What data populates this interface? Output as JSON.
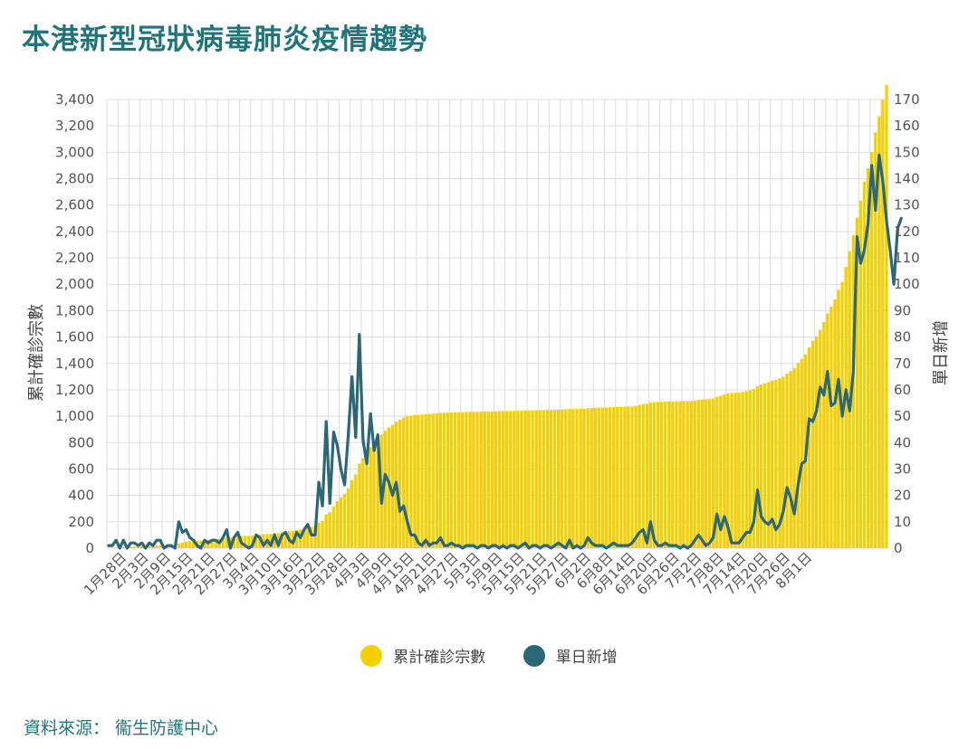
{
  "title": "本港新型冠狀病毒肺炎疫情趨勢",
  "source": "資料來源： 衞生防護中心",
  "colors": {
    "bar": "#f5d000",
    "line": "#2b6777",
    "title": "#20757a",
    "grid": "#dddddd"
  },
  "chart_data": {
    "type": "bar+line",
    "title": "本港新型冠狀病毒肺炎疫情趨勢",
    "ylabel": "累計確診宗數",
    "y2label": "單日新增",
    "ylim": [
      0,
      3400
    ],
    "y2lim": [
      0,
      170
    ],
    "yticks": [
      "0",
      "200",
      "400",
      "600",
      "800",
      "1,000",
      "1,200",
      "1,400",
      "1,600",
      "1,800",
      "2,000",
      "2,200",
      "2,400",
      "2,600",
      "2,800",
      "3,000",
      "3,200",
      "3,400"
    ],
    "y2ticks": [
      "0",
      "10",
      "20",
      "30",
      "40",
      "50",
      "60",
      "70",
      "80",
      "90",
      "100",
      "110",
      "120",
      "130",
      "140",
      "150",
      "160",
      "170"
    ],
    "xticks": [
      "1月28日",
      "2月3日",
      "2月9日",
      "2月15日",
      "2月21日",
      "2月27日",
      "3月4日",
      "3月10日",
      "3月16日",
      "3月22日",
      "3月28日",
      "4月3日",
      "4月9日",
      "4月15日",
      "4月21日",
      "4月27日",
      "5月3日",
      "5月9日",
      "5月15日",
      "5月21日",
      "5月27日",
      "6月2日",
      "6月8日",
      "6月14日",
      "6月20日",
      "6月26日",
      "7月2日",
      "7月8日",
      "7月14日",
      "7月20日",
      "7月26日",
      "8月1日"
    ],
    "start_date": "2020-01-23",
    "grid": true,
    "legend_position": "bottom",
    "series": [
      {
        "name": "累計確診宗數",
        "type": "bar",
        "values": [
          1,
          2,
          5,
          5,
          8,
          8,
          10,
          12,
          13,
          15,
          15,
          17,
          18,
          21,
          24,
          24,
          25,
          26,
          26,
          36,
          42,
          49,
          53,
          56,
          57,
          57,
          60,
          62,
          65,
          68,
          70,
          74,
          81,
          81,
          85,
          91,
          93,
          94,
          94,
          95,
          100,
          104,
          105,
          108,
          109,
          114,
          115,
          120,
          126,
          129,
          131,
          137,
          141,
          148,
          157,
          162,
          167,
          192,
          208,
          256,
          273,
          317,
          356,
          386,
          410,
          453,
          518,
          560,
          641,
          682,
          714,
          765,
          802,
          845,
          862,
          890,
          915,
          935,
          960,
          974,
          990,
          1000,
          1005,
          1010,
          1012,
          1013,
          1016,
          1017,
          1019,
          1021,
          1025,
          1026,
          1027,
          1029,
          1030,
          1031,
          1031,
          1032,
          1033,
          1034,
          1034,
          1035,
          1036,
          1036,
          1037,
          1038,
          1038,
          1039,
          1039,
          1040,
          1041,
          1041,
          1042,
          1044,
          1044,
          1045,
          1046,
          1046,
          1047,
          1048,
          1048,
          1049,
          1051,
          1052,
          1052,
          1055,
          1055,
          1056,
          1056,
          1057,
          1061,
          1063,
          1064,
          1065,
          1066,
          1066,
          1067,
          1069,
          1070,
          1071,
          1072,
          1073,
          1075,
          1079,
          1085,
          1092,
          1094,
          1104,
          1107,
          1108,
          1109,
          1111,
          1112,
          1113,
          1114,
          1114,
          1115,
          1115,
          1116,
          1119,
          1124,
          1127,
          1128,
          1130,
          1134,
          1147,
          1154,
          1166,
          1174,
          1176,
          1178,
          1180,
          1184,
          1190,
          1196,
          1206,
          1228,
          1240,
          1250,
          1259,
          1270,
          1277,
          1286,
          1300,
          1323,
          1342,
          1366,
          1404,
          1436,
          1469,
          1522,
          1570,
          1605,
          1655,
          1713,
          1778,
          1832,
          1886,
          1958,
          2018,
          2132,
          2250,
          2372,
          2505,
          2633,
          2778,
          2880,
          3002,
          3151,
          3273,
          3397,
          3512
        ]
      },
      {
        "name": "單日新增",
        "type": "line",
        "values": [
          1,
          1,
          3,
          0,
          3,
          0,
          2,
          2,
          1,
          2,
          0,
          2,
          1,
          3,
          3,
          0,
          1,
          1,
          0,
          10,
          6,
          7,
          4,
          3,
          1,
          0,
          3,
          2,
          3,
          3,
          2,
          4,
          7,
          0,
          4,
          6,
          2,
          1,
          0,
          1,
          5,
          4,
          1,
          3,
          1,
          5,
          1,
          5,
          6,
          3,
          2,
          6,
          4,
          7,
          9,
          5,
          5,
          25,
          16,
          48,
          17,
          44,
          39,
          30,
          24,
          43,
          65,
          42,
          81,
          41,
          32,
          51,
          37,
          43,
          17,
          28,
          25,
          20,
          25,
          14,
          16,
          10,
          5,
          5,
          2,
          1,
          3,
          1,
          2,
          2,
          4,
          1,
          1,
          2,
          1,
          1,
          0,
          1,
          1,
          1,
          0,
          1,
          1,
          0,
          1,
          1,
          0,
          1,
          0,
          1,
          1,
          0,
          1,
          2,
          0,
          1,
          1,
          0,
          1,
          1,
          0,
          1,
          2,
          1,
          0,
          3,
          0,
          1,
          0,
          1,
          4,
          2,
          1,
          1,
          1,
          0,
          1,
          2,
          1,
          1,
          1,
          1,
          2,
          4,
          6,
          7,
          2,
          10,
          3,
          1,
          1,
          2,
          1,
          1,
          1,
          0,
          1,
          0,
          1,
          3,
          5,
          3,
          1,
          2,
          4,
          13,
          7,
          12,
          8,
          2,
          2,
          2,
          4,
          6,
          6,
          10,
          22,
          12,
          10,
          9,
          11,
          7,
          9,
          14,
          23,
          19,
          13,
          24,
          32,
          33,
          49,
          48,
          52,
          61,
          58,
          67,
          54,
          55,
          64,
          50,
          60,
          52,
          67,
          118,
          108,
          113,
          123,
          145,
          128,
          149,
          139,
          124,
          113,
          100,
          121,
          125
        ]
      }
    ]
  }
}
